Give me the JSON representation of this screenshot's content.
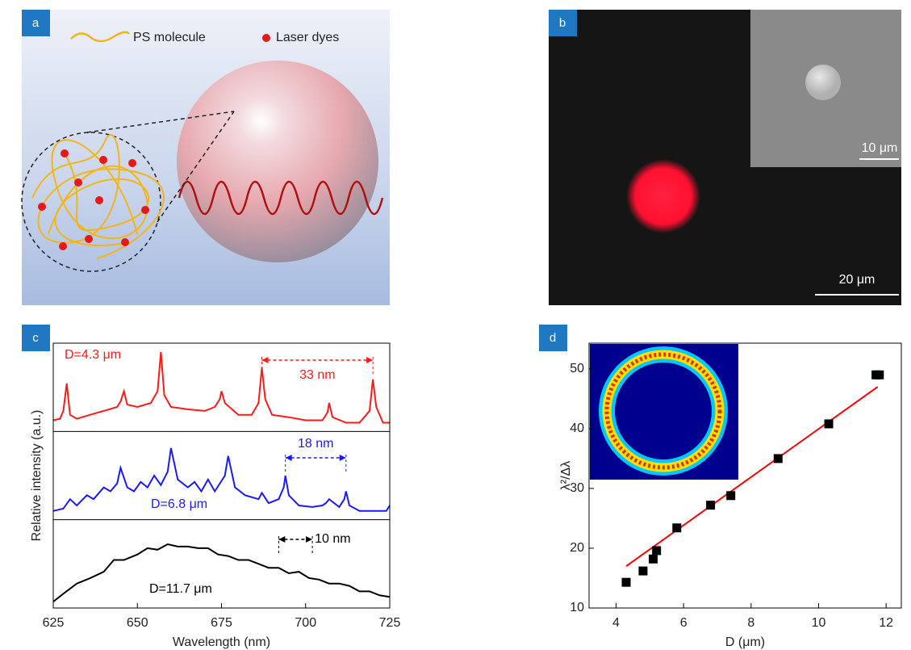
{
  "panels": {
    "a": {
      "label": "a",
      "legend": [
        "PS molecule",
        "Laser dyes"
      ]
    },
    "b": {
      "label": "b",
      "scale_bars": [
        "10 μm",
        "20 μm"
      ]
    },
    "c": {
      "label": "c"
    },
    "d": {
      "label": "d"
    }
  },
  "chart_data": [
    {
      "type": "line",
      "xlabel": "Wavelength (nm)",
      "ylabel": "Relative intensity (a.u.)",
      "xlim": [
        625,
        725
      ],
      "xticks": [
        625,
        650,
        675,
        700,
        725
      ],
      "ylim": [
        0,
        1
      ],
      "series": [
        {
          "name": "D=4.3 μm",
          "color": "#ff1a1a",
          "x": [
            625,
            627,
            628,
            629,
            630,
            632,
            636,
            640,
            644,
            645,
            646,
            647,
            650,
            654,
            656,
            657,
            658,
            660,
            665,
            670,
            673,
            674.5,
            675,
            676,
            680,
            684,
            686,
            687,
            688,
            690,
            695,
            700,
            705,
            706.5,
            707,
            708,
            712,
            716,
            719,
            720,
            721,
            723,
            725
          ],
          "values": [
            0.08,
            0.1,
            0.2,
            0.55,
            0.15,
            0.1,
            0.15,
            0.2,
            0.25,
            0.32,
            0.45,
            0.28,
            0.25,
            0.3,
            0.45,
            0.95,
            0.4,
            0.25,
            0.22,
            0.2,
            0.25,
            0.35,
            0.45,
            0.3,
            0.15,
            0.15,
            0.3,
            0.75,
            0.35,
            0.15,
            0.12,
            0.08,
            0.08,
            0.18,
            0.3,
            0.12,
            0.05,
            0.05,
            0.2,
            0.6,
            0.25,
            0.05,
            0.05
          ]
        },
        {
          "name": "D=6.8 μm",
          "color": "#1a1aff",
          "x": [
            625,
            628,
            630,
            632,
            635,
            637,
            640,
            642,
            644,
            645,
            647,
            649,
            651,
            653,
            655,
            657,
            659,
            660,
            662,
            665,
            667,
            669,
            671,
            673,
            676,
            677,
            679,
            682,
            686,
            687,
            689,
            692,
            693.5,
            694,
            695,
            698,
            702,
            705,
            706,
            707,
            710,
            711.5,
            712,
            713,
            716,
            720,
            724,
            725
          ],
          "values": [
            0.05,
            0.08,
            0.2,
            0.12,
            0.25,
            0.2,
            0.35,
            0.3,
            0.4,
            0.6,
            0.35,
            0.3,
            0.42,
            0.35,
            0.5,
            0.38,
            0.55,
            0.85,
            0.45,
            0.35,
            0.42,
            0.3,
            0.45,
            0.3,
            0.5,
            0.75,
            0.35,
            0.25,
            0.2,
            0.28,
            0.15,
            0.2,
            0.35,
            0.5,
            0.25,
            0.12,
            0.1,
            0.12,
            0.15,
            0.2,
            0.1,
            0.2,
            0.3,
            0.12,
            0.05,
            0.05,
            0.05,
            0.12
          ]
        },
        {
          "name": "D=11.7 μm",
          "color": "#000000",
          "x": [
            625,
            628,
            632,
            636,
            640,
            643,
            646,
            650,
            653,
            656,
            659,
            662,
            665,
            668,
            671,
            674,
            677,
            680,
            683,
            686,
            689,
            692,
            695,
            698,
            701,
            704,
            707,
            710,
            713,
            716,
            719,
            722,
            725
          ],
          "values": [
            0.02,
            0.12,
            0.25,
            0.32,
            0.4,
            0.55,
            0.55,
            0.62,
            0.7,
            0.68,
            0.75,
            0.72,
            0.72,
            0.7,
            0.7,
            0.62,
            0.6,
            0.55,
            0.55,
            0.5,
            0.45,
            0.45,
            0.38,
            0.4,
            0.32,
            0.3,
            0.25,
            0.25,
            0.22,
            0.15,
            0.15,
            0.1,
            0.08
          ]
        }
      ],
      "annotations": [
        {
          "text": "33 nm",
          "x": [
            687,
            720
          ]
        },
        {
          "text": "18 nm",
          "x": [
            694,
            712
          ]
        },
        {
          "text": "10 nm",
          "x": [
            692,
            702
          ]
        }
      ]
    },
    {
      "type": "scatter",
      "xlabel": "D (μm)",
      "ylabel": "λ²/Δλ",
      "x": [
        4.3,
        4.8,
        5.1,
        5.2,
        5.8,
        6.8,
        7.4,
        8.8,
        10.3,
        11.7,
        11.8
      ],
      "values": [
        14.3,
        16.2,
        18.2,
        19.6,
        23.4,
        27.2,
        28.8,
        35,
        40.8,
        49,
        49
      ],
      "color": "#000000",
      "xlim": [
        3.2,
        12.45
      ],
      "xticks": [
        4,
        6,
        8,
        10,
        12
      ],
      "ylim": [
        10,
        54.3
      ],
      "yticks": [
        10,
        20,
        30,
        40,
        50
      ],
      "fit": {
        "x": [
          4.3,
          11.75
        ],
        "values": [
          17,
          47
        ],
        "color": "#ff0000"
      }
    }
  ]
}
